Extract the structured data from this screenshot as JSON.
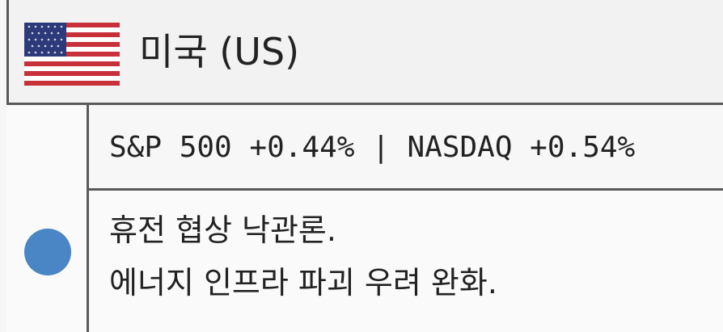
{
  "header": {
    "title": "미국 (US)"
  },
  "rows": [
    {
      "text": "S&P 500 +0.44% | NASDAQ +0.54%"
    },
    {
      "lines": [
        "휴전 협상 낙관론.",
        "에너지 인프라 파괴 우려 완화."
      ]
    }
  ]
}
